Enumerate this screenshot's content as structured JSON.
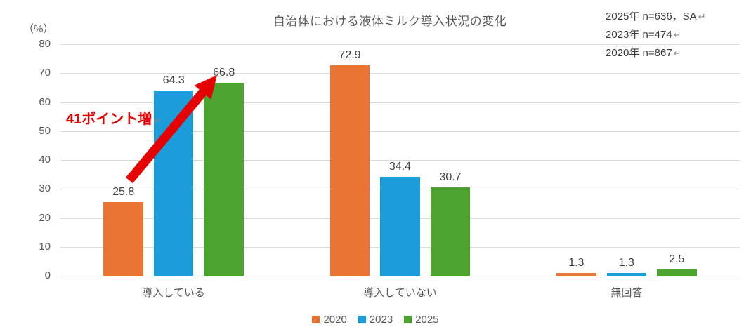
{
  "title": "自治体における液体ミルク導入状況の変化",
  "notes": {
    "lines": [
      {
        "text": "2025年 n=636，SA",
        "mark": "↵"
      },
      {
        "text": "2023年 n=474",
        "mark": "↵"
      },
      {
        "text": "2020年 n=867",
        "mark": "↵"
      }
    ]
  },
  "annotation": {
    "label": "41ポイント増",
    "mark": "↵",
    "color": "#e60000"
  },
  "chart_data": {
    "type": "bar",
    "title": "自治体における液体ミルク導入状況の変化",
    "unit_label": "（%）",
    "categories": [
      "導入している",
      "導入していない",
      "無回答"
    ],
    "series": [
      {
        "name": "2020",
        "color": "#e97434",
        "values": [
          25.8,
          72.9,
          1.3
        ]
      },
      {
        "name": "2023",
        "color": "#1b9dd9",
        "values": [
          64.3,
          34.4,
          1.3
        ]
      },
      {
        "name": "2025",
        "color": "#4da32f",
        "values": [
          66.8,
          30.7,
          2.5
        ]
      }
    ],
    "ylim": [
      0,
      80
    ],
    "ytick_step": 10,
    "grid": true,
    "gridline_color": "#d9d9d9",
    "legend_position": "bottom",
    "value_labels": true
  }
}
